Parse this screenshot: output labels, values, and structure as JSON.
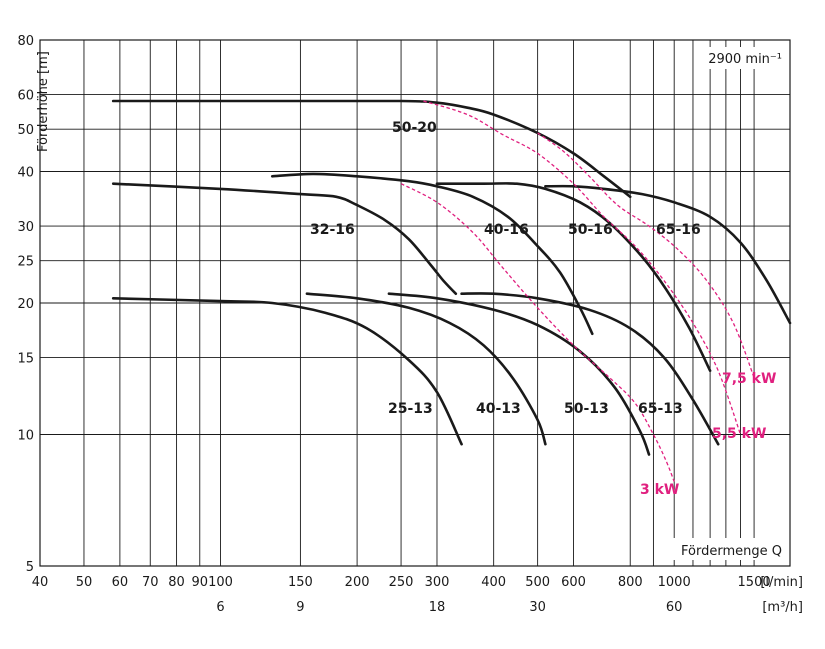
{
  "chart_data": {
    "type": "line",
    "title": "",
    "speed_label": "2900 min⁻¹",
    "ylabel": "Förderhöhe [m]",
    "xlabel": "Fördermenge Q",
    "x_scale": "log",
    "y_scale": "log",
    "xlim": [
      40,
      1800
    ],
    "ylim": [
      5,
      80
    ],
    "grid": true,
    "x_ticks": [
      40,
      50,
      60,
      70,
      80,
      90,
      100,
      150,
      200,
      250,
      300,
      400,
      500,
      600,
      800,
      1000,
      1500
    ],
    "x_tick_labels": [
      "40",
      "50",
      "60",
      "70",
      "80",
      "90",
      "100",
      "150",
      "200",
      "250",
      "300",
      "400",
      "500",
      "600",
      "800",
      "1000",
      "1500"
    ],
    "x_unit": "[l/min]",
    "x_ticks_extra": [
      900,
      1100,
      1200,
      1300,
      1400
    ],
    "x2_ticks": [
      100,
      150,
      300,
      500,
      1000
    ],
    "x2_tick_labels": [
      "6",
      "9",
      "18",
      "30",
      "60"
    ],
    "x2_unit": "[m³/h]",
    "y_ticks": [
      5,
      10,
      15,
      20,
      25,
      30,
      40,
      50,
      60,
      80
    ],
    "y_tick_labels": [
      "5",
      "10",
      "15",
      "20",
      "25",
      "30",
      "40",
      "50",
      "60",
      "80"
    ],
    "series": [
      {
        "name": "50-20",
        "x": [
          58,
          150,
          250,
          300,
          350,
          400,
          500,
          600,
          700,
          800
        ],
        "y": [
          58,
          58,
          58,
          57.5,
          56,
          54,
          49,
          44,
          39,
          35
        ]
      },
      {
        "name": "32-16",
        "x": [
          58,
          100,
          150,
          180,
          200,
          230,
          260,
          290,
          310,
          330
        ],
        "y": [
          37.5,
          36.5,
          35.5,
          35,
          33.5,
          31,
          28,
          24.5,
          22.5,
          21
        ]
      },
      {
        "name": "40-16",
        "x": [
          130,
          160,
          200,
          260,
          300,
          360,
          430,
          500,
          560,
          620,
          660
        ],
        "y": [
          39,
          39.5,
          39,
          38,
          37,
          35,
          31.5,
          27,
          23.5,
          19.5,
          17
        ]
      },
      {
        "name": "50-16",
        "x": [
          300,
          380,
          450,
          520,
          620,
          720,
          850,
          960,
          1080,
          1200
        ],
        "y": [
          37.5,
          37.5,
          37.5,
          36.5,
          34,
          30.5,
          25.5,
          21.5,
          17.5,
          14
        ]
      },
      {
        "name": "65-16",
        "x": [
          520,
          600,
          700,
          850,
          1000,
          1200,
          1400,
          1600,
          1800
        ],
        "y": [
          37,
          37,
          36.5,
          35.5,
          34,
          31.5,
          27.5,
          22.5,
          18
        ]
      },
      {
        "name": "25-13",
        "x": [
          58,
          100,
          130,
          170,
          210,
          260,
          300,
          340
        ],
        "y": [
          20.5,
          20.2,
          20,
          19,
          17.5,
          14.8,
          12.5,
          9.5
        ]
      },
      {
        "name": "40-13",
        "x": [
          155,
          200,
          260,
          320,
          380,
          440,
          500,
          520
        ],
        "y": [
          21,
          20.5,
          19.5,
          18,
          16,
          13.5,
          10.8,
          9.5
        ]
      },
      {
        "name": "50-13",
        "x": [
          235,
          300,
          400,
          500,
          620,
          740,
          840,
          880
        ],
        "y": [
          21,
          20.5,
          19.3,
          17.8,
          15.5,
          12.8,
          10.2,
          9
        ]
      },
      {
        "name": "65-13",
        "x": [
          340,
          400,
          500,
          650,
          800,
          950,
          1100,
          1250
        ],
        "y": [
          21,
          21,
          20.5,
          19.3,
          17.5,
          15,
          12,
          9.5
        ]
      }
    ],
    "power_lines": [
      {
        "name": "3 kW",
        "x": [
          250,
          300,
          360,
          420,
          500,
          600,
          720,
          820,
          900,
          960,
          1000
        ],
        "y": [
          37.5,
          34,
          29,
          24,
          19.5,
          16,
          13.5,
          11.8,
          10,
          8.7,
          7.8
        ]
      },
      {
        "name": "5,5 kW",
        "x": [
          280,
          350,
          420,
          500,
          600,
          700,
          820,
          950,
          1100,
          1250,
          1400
        ],
        "y": [
          58,
          54,
          48.5,
          44,
          37.5,
          31.5,
          27,
          22.5,
          18,
          14,
          10
        ]
      },
      {
        "name": "7,5 kW",
        "x": [
          500,
          570,
          650,
          750,
          880,
          1020,
          1180,
          1350,
          1500
        ],
        "y": [
          49,
          44.5,
          39,
          33.5,
          30,
          26.5,
          22.5,
          18,
          13.5
        ]
      }
    ],
    "curve_label_text": [
      "50-20",
      "32-16",
      "40-16",
      "50-16",
      "65-16",
      "25-13",
      "40-13",
      "50-13",
      "65-13"
    ],
    "power_label_text": [
      "3 kW",
      "5,5 kW",
      "7,5 kW"
    ],
    "curve_color": "#1a1a1a",
    "power_color": "#e0207f",
    "grid_color": "#1a1a1a"
  }
}
